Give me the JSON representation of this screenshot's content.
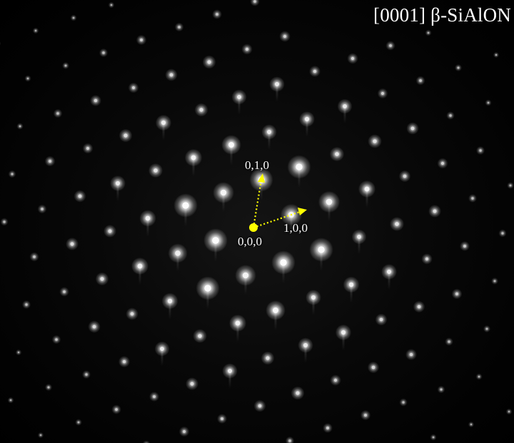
{
  "image": {
    "title": "[0001] β-SiAlON",
    "labels": {
      "origin": "0,0,0",
      "index_010": "0,1,0",
      "index_100": "1,0,0"
    },
    "colors": {
      "background": "#000000",
      "spot": "#ffffff",
      "arrow": "#ffff00",
      "text": "#ffffff"
    }
  }
}
